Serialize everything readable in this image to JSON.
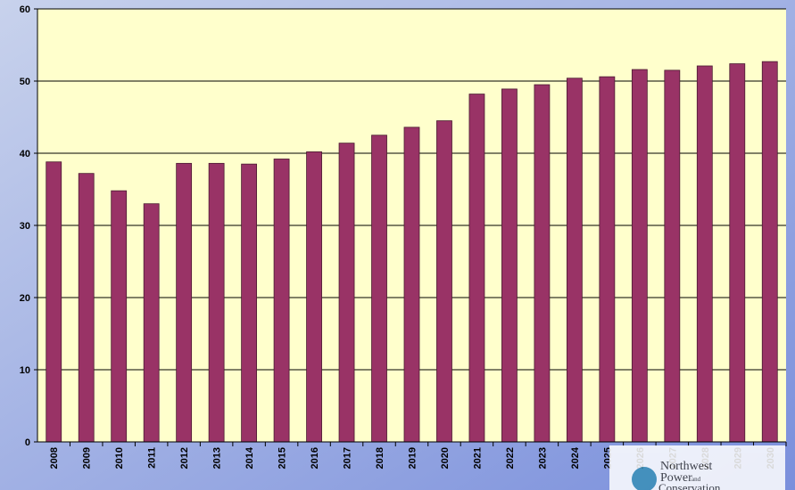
{
  "chart_data": {
    "type": "bar",
    "categories": [
      "2008",
      "2009",
      "2010",
      "2011",
      "2012",
      "2013",
      "2014",
      "2015",
      "2016",
      "2017",
      "2018",
      "2019",
      "2020",
      "2021",
      "2022",
      "2023",
      "2024",
      "2025",
      "2026",
      "2027",
      "2028",
      "2029",
      "2030"
    ],
    "values": [
      38.8,
      37.2,
      34.8,
      33.0,
      38.6,
      38.6,
      38.5,
      39.2,
      40.2,
      41.4,
      42.5,
      43.6,
      44.5,
      48.2,
      48.9,
      49.5,
      50.4,
      50.6,
      51.6,
      51.5,
      52.1,
      52.4,
      52.7
    ],
    "color": "#993366",
    "ylim": [
      0,
      60
    ],
    "yticks": [
      0,
      10,
      20,
      30,
      40,
      50,
      60
    ],
    "grid": true,
    "logo": [
      "Northwest",
      "Power",
      "and",
      "Conservation"
    ]
  }
}
